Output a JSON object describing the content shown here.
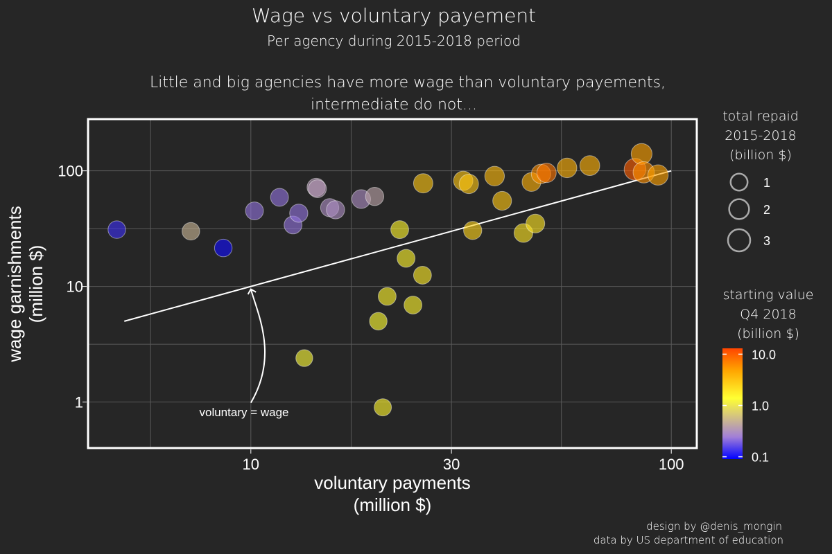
{
  "chart_data": {
    "type": "scatter",
    "title": "Wage vs voluntary payement",
    "subtitle": "Per agency during 2015-2018 period",
    "subtitle2_line1": "Little and big agencies have more wage than voluntary payements,",
    "subtitle2_line2": "intermediate do not...",
    "xlabel_line1": "voluntary payments",
    "xlabel_line2": "(million $)",
    "ylabel_line1": "wage garnishments",
    "ylabel_line2": "(million $)",
    "x_scale": "log",
    "y_scale": "log",
    "xlim": [
      4.1,
      115
    ],
    "ylim": [
      0.4,
      280
    ],
    "x_ticks": [
      10,
      30,
      100
    ],
    "x_tick_labels": [
      "10",
      "30",
      "100"
    ],
    "y_ticks": [
      1,
      10,
      100
    ],
    "y_tick_labels": [
      "1",
      "10",
      "100"
    ],
    "grid": true,
    "reference_line": {
      "x": [
        5,
        100
      ],
      "y": [
        5,
        100
      ]
    },
    "annotation": {
      "text": "voluntary = wage",
      "points_to": [
        10,
        10
      ]
    },
    "size_legend": {
      "title": [
        "total repaid",
        "2015-2018",
        "(billion $)"
      ],
      "values": [
        1,
        2,
        3
      ],
      "labels": [
        "1",
        "2",
        "3"
      ]
    },
    "color_legend": {
      "title": [
        "starting value",
        "Q4 2018",
        "(billion $)"
      ],
      "ticks": [
        0.1,
        1.0,
        10.0
      ],
      "labels": [
        "0.1",
        "1.0",
        "10.0"
      ],
      "range": [
        0.09,
        13
      ],
      "scale": "log",
      "stops": [
        "#0000ff",
        "#a27fd8",
        "#ffff33",
        "#ffa500",
        "#ff4500"
      ]
    },
    "points": [
      {
        "x": 4.8,
        "y": 31,
        "repaid": 1.2,
        "start": 0.13
      },
      {
        "x": 7.2,
        "y": 30,
        "repaid": 1.2,
        "start": 0.5
      },
      {
        "x": 8.6,
        "y": 21.5,
        "repaid": 1.2,
        "start": 0.1
      },
      {
        "x": 10.2,
        "y": 45,
        "repaid": 1.3,
        "start": 0.22
      },
      {
        "x": 11.7,
        "y": 59,
        "repaid": 1.3,
        "start": 0.22
      },
      {
        "x": 12.6,
        "y": 34,
        "repaid": 1.3,
        "start": 0.22
      },
      {
        "x": 13.0,
        "y": 43,
        "repaid": 1.4,
        "start": 0.22
      },
      {
        "x": 13.4,
        "y": 2.4,
        "repaid": 1.0,
        "start": 1.3
      },
      {
        "x": 14.3,
        "y": 72,
        "repaid": 1.4,
        "start": 0.35
      },
      {
        "x": 14.4,
        "y": 70,
        "repaid": 1.3,
        "start": 0.35
      },
      {
        "x": 15.4,
        "y": 48,
        "repaid": 1.4,
        "start": 0.3
      },
      {
        "x": 15.9,
        "y": 46,
        "repaid": 1.4,
        "start": 0.3
      },
      {
        "x": 18.3,
        "y": 57,
        "repaid": 1.6,
        "start": 0.3
      },
      {
        "x": 19.7,
        "y": 60,
        "repaid": 1.4,
        "start": 0.4
      },
      {
        "x": 20.1,
        "y": 5.0,
        "repaid": 1.2,
        "start": 1.4
      },
      {
        "x": 20.6,
        "y": 0.9,
        "repaid": 1.1,
        "start": 1.6
      },
      {
        "x": 21.1,
        "y": 8.2,
        "repaid": 1.3,
        "start": 1.6
      },
      {
        "x": 22.6,
        "y": 31,
        "repaid": 1.3,
        "start": 1.6
      },
      {
        "x": 23.4,
        "y": 17.5,
        "repaid": 1.3,
        "start": 1.6
      },
      {
        "x": 24.3,
        "y": 6.9,
        "repaid": 1.3,
        "start": 1.6
      },
      {
        "x": 25.6,
        "y": 12.5,
        "repaid": 1.3,
        "start": 1.8
      },
      {
        "x": 25.7,
        "y": 78,
        "repaid": 1.8,
        "start": 3.0
      },
      {
        "x": 32.0,
        "y": 82,
        "repaid": 1.8,
        "start": 3.0
      },
      {
        "x": 33.0,
        "y": 77,
        "repaid": 1.8,
        "start": 3.0
      },
      {
        "x": 33.7,
        "y": 30.5,
        "repaid": 1.4,
        "start": 2.5
      },
      {
        "x": 38.0,
        "y": 90,
        "repaid": 1.9,
        "start": 3.5
      },
      {
        "x": 39.6,
        "y": 55,
        "repaid": 1.6,
        "start": 3.0
      },
      {
        "x": 44.5,
        "y": 29,
        "repaid": 1.6,
        "start": 2.0
      },
      {
        "x": 46.5,
        "y": 80,
        "repaid": 1.6,
        "start": 4.0
      },
      {
        "x": 47.5,
        "y": 35,
        "repaid": 1.6,
        "start": 2.0
      },
      {
        "x": 49.0,
        "y": 94,
        "repaid": 1.8,
        "start": 6.0
      },
      {
        "x": 50.5,
        "y": 96,
        "repaid": 1.8,
        "start": 8.0
      },
      {
        "x": 56.5,
        "y": 106,
        "repaid": 1.9,
        "start": 4.0
      },
      {
        "x": 64.0,
        "y": 111,
        "repaid": 2.0,
        "start": 4.0
      },
      {
        "x": 82.0,
        "y": 103,
        "repaid": 2.8,
        "start": 10.0
      },
      {
        "x": 85.0,
        "y": 140,
        "repaid": 2.4,
        "start": 5.0
      },
      {
        "x": 86.0,
        "y": 97,
        "repaid": 2.6,
        "start": 6.0
      },
      {
        "x": 93.0,
        "y": 92,
        "repaid": 2.2,
        "start": 5.0
      }
    ]
  },
  "caption": {
    "line1": "design by @denis_mongin",
    "line2": "data by US department of education"
  },
  "colors": {
    "background": "#262626",
    "panel_border": "#ffffff",
    "grid": "#5a5a5a",
    "text": "#ffffff"
  }
}
